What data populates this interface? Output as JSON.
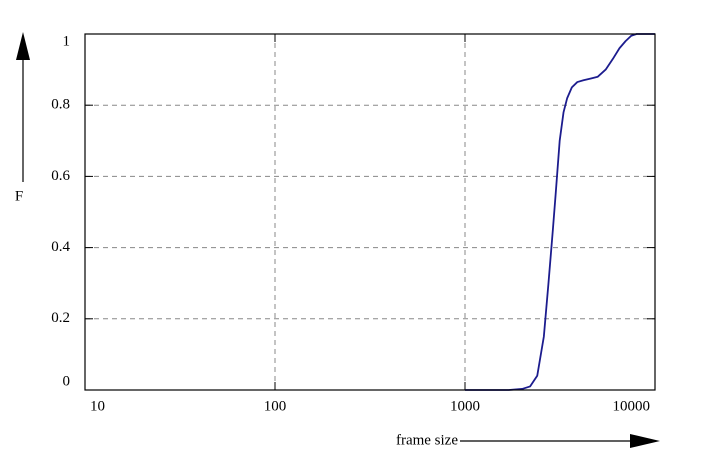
{
  "chart_data": {
    "type": "line",
    "x_label": "frame size",
    "y_label": "F",
    "x_log": true,
    "grid": true,
    "xlim": [
      10,
      10000
    ],
    "xticks": [
      10,
      100,
      1000,
      10000
    ],
    "ylim": [
      0,
      1
    ],
    "yticks": [
      0,
      0.2,
      0.4,
      0.6,
      0.8,
      1
    ],
    "x": [
      1000,
      1700,
      2000,
      2200,
      2400,
      2600,
      2750,
      2900,
      3000,
      3150,
      3300,
      3450,
      3650,
      3900,
      4200,
      4600,
      5000,
      5500,
      6000,
      6500,
      7000,
      7500,
      8000,
      8500,
      10000
    ],
    "series": [
      {
        "color": "#1c1c8e",
        "values": [
          0,
          0,
          0.003,
          0.01,
          0.04,
          0.15,
          0.3,
          0.45,
          0.55,
          0.7,
          0.78,
          0.82,
          0.85,
          0.865,
          0.87,
          0.875,
          0.88,
          0.9,
          0.93,
          0.96,
          0.98,
          0.995,
          1,
          1,
          1
        ]
      }
    ]
  }
}
